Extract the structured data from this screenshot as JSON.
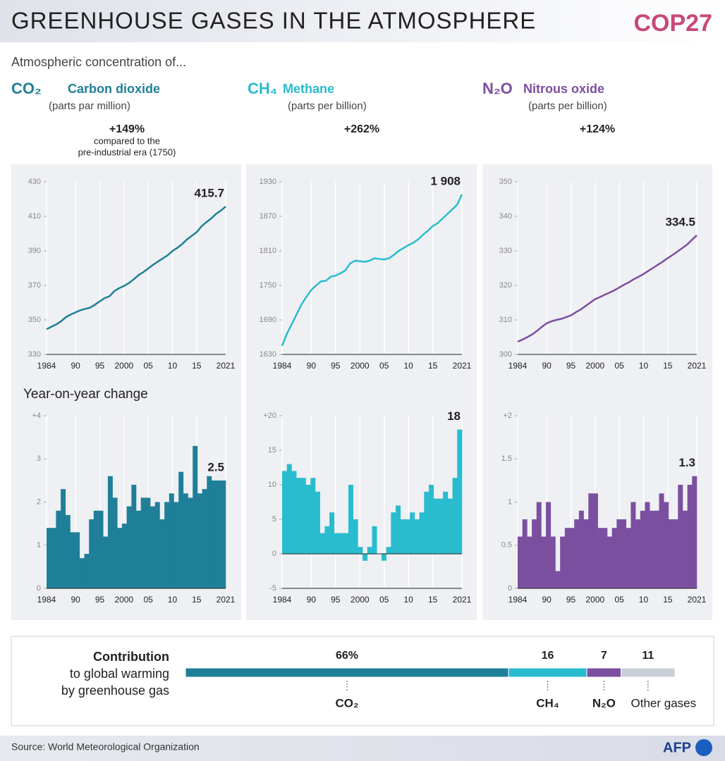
{
  "title": "GREENHOUSE GASES IN THE ATMOSPHERE",
  "logo": "COP27",
  "subtitle": "Atmospheric concentration of...",
  "yoy_label": "Year-on-year change",
  "gases": [
    {
      "formula": "CO₂",
      "name": "Carbon dioxide",
      "unit": "(parts par million)",
      "change": "+149%",
      "note": "compared to the",
      "note2": "pre-industrial era (1750)",
      "color": "#1f7f98"
    },
    {
      "formula": "CH₄",
      "name": "Methane",
      "unit": "(parts per billion)",
      "change": "+262%",
      "color": "#29bccf"
    },
    {
      "formula": "N₂O",
      "name": "Nitrous oxide",
      "unit": "(parts per billion)",
      "change": "+124%",
      "color": "#7b4fa0"
    }
  ],
  "chart_data": [
    {
      "type": "line",
      "color": "#1f7f98",
      "x": [
        1984,
        1985,
        1986,
        1987,
        1988,
        1989,
        1990,
        1991,
        1992,
        1993,
        1994,
        1995,
        1996,
        1997,
        1998,
        1999,
        2000,
        2001,
        2002,
        2003,
        2004,
        2005,
        2006,
        2007,
        2008,
        2009,
        2010,
        2011,
        2012,
        2013,
        2014,
        2015,
        2016,
        2017,
        2018,
        2019,
        2020,
        2021
      ],
      "values": [
        344.6,
        346.0,
        347.4,
        349.2,
        351.6,
        353.1,
        354.4,
        355.6,
        356.4,
        357.1,
        358.8,
        360.8,
        362.6,
        363.7,
        366.7,
        368.4,
        369.7,
        371.3,
        373.5,
        375.9,
        377.7,
        379.8,
        381.9,
        383.8,
        385.6,
        387.4,
        389.9,
        391.7,
        393.9,
        396.6,
        398.7,
        400.8,
        404.2,
        406.6,
        408.7,
        411.4,
        413.3,
        415.7
      ],
      "value_labels": [
        null,
        null,
        null,
        null,
        null,
        null,
        null,
        null,
        null,
        null,
        null,
        null,
        null,
        null,
        null,
        null,
        null,
        null,
        null,
        null,
        null,
        null,
        null,
        null,
        null,
        null,
        null,
        null,
        null,
        null,
        null,
        null,
        null,
        null,
        null,
        null,
        null,
        "415.7"
      ],
      "xlim": [
        1984,
        2021
      ],
      "ylim": [
        330,
        430
      ],
      "xticks": [
        1984,
        {
          "value": 1990,
          "label": "90"
        },
        {
          "value": 1995,
          "label": "95"
        },
        2000,
        {
          "value": 2005,
          "label": "05"
        },
        {
          "value": 2010,
          "label": "10"
        },
        {
          "value": 2015,
          "label": "15"
        },
        2021
      ],
      "yticks": [
        330,
        350,
        370,
        390,
        410,
        430
      ]
    },
    {
      "type": "line",
      "color": "#29bccf",
      "x": [
        1984,
        1985,
        1986,
        1987,
        1988,
        1989,
        1990,
        1991,
        1992,
        1993,
        1994,
        1995,
        1996,
        1997,
        1998,
        1999,
        2000,
        2001,
        2002,
        2003,
        2004,
        2005,
        2006,
        2007,
        2008,
        2009,
        2010,
        2011,
        2012,
        2013,
        2014,
        2015,
        2016,
        2017,
        2018,
        2019,
        2020,
        2021
      ],
      "values": [
        1645,
        1666,
        1683,
        1700,
        1717,
        1730,
        1742,
        1750,
        1757,
        1758,
        1765,
        1767,
        1771,
        1776,
        1788,
        1793,
        1792,
        1791,
        1793,
        1797,
        1796,
        1795,
        1797,
        1803,
        1810,
        1815,
        1820,
        1824,
        1830,
        1838,
        1845,
        1853,
        1858,
        1866,
        1874,
        1882,
        1890,
        1908
      ],
      "value_labels": [
        null,
        null,
        null,
        null,
        null,
        null,
        null,
        null,
        null,
        null,
        null,
        null,
        null,
        null,
        null,
        null,
        null,
        null,
        null,
        null,
        null,
        null,
        null,
        null,
        null,
        null,
        null,
        null,
        null,
        null,
        null,
        null,
        null,
        null,
        null,
        null,
        null,
        "1 908"
      ],
      "xlim": [
        1984,
        2021
      ],
      "ylim": [
        1630,
        1930
      ],
      "xticks": [
        1984,
        {
          "value": 1990,
          "label": "90"
        },
        {
          "value": 1995,
          "label": "95"
        },
        2000,
        {
          "value": 2005,
          "label": "05"
        },
        {
          "value": 2010,
          "label": "10"
        },
        {
          "value": 2015,
          "label": "15"
        },
        2021
      ],
      "yticks": [
        1630,
        1690,
        1750,
        1810,
        1870,
        1930
      ]
    },
    {
      "type": "line",
      "color": "#7b4fa0",
      "x": [
        1984,
        1985,
        1986,
        1987,
        1988,
        1989,
        1990,
        1991,
        1992,
        1993,
        1994,
        1995,
        1996,
        1997,
        1998,
        1999,
        2000,
        2001,
        2002,
        2003,
        2004,
        2005,
        2006,
        2007,
        2008,
        2009,
        2010,
        2011,
        2012,
        2013,
        2014,
        2015,
        2016,
        2017,
        2018,
        2019,
        2020,
        2021
      ],
      "values": [
        303.7,
        304.3,
        305.0,
        305.8,
        306.8,
        308.0,
        309.0,
        309.6,
        310.0,
        310.3,
        310.8,
        311.3,
        312.2,
        313.0,
        314.0,
        315.0,
        316.0,
        316.6,
        317.3,
        317.9,
        318.6,
        319.4,
        320.2,
        320.9,
        321.8,
        322.5,
        323.3,
        324.2,
        325.1,
        326.0,
        326.9,
        327.9,
        328.8,
        329.8,
        330.8,
        331.8,
        333.2,
        334.5
      ],
      "value_labels": [
        null,
        null,
        null,
        null,
        null,
        null,
        null,
        null,
        null,
        null,
        null,
        null,
        null,
        null,
        null,
        null,
        null,
        null,
        null,
        null,
        null,
        null,
        null,
        null,
        null,
        null,
        null,
        null,
        null,
        null,
        null,
        null,
        null,
        null,
        null,
        null,
        null,
        "334.5"
      ],
      "xlim": [
        1984,
        2021
      ],
      "ylim": [
        300,
        350
      ],
      "xticks": [
        1984,
        {
          "value": 1990,
          "label": "90"
        },
        {
          "value": 1995,
          "label": "95"
        },
        2000,
        {
          "value": 2005,
          "label": "05"
        },
        {
          "value": 2010,
          "label": "10"
        },
        {
          "value": 2015,
          "label": "15"
        },
        2021
      ],
      "yticks": [
        300,
        310,
        320,
        330,
        340,
        350
      ]
    },
    {
      "type": "bar",
      "color": "#1f7f98",
      "x": [
        1984,
        1985,
        1986,
        1987,
        1988,
        1989,
        1990,
        1991,
        1992,
        1993,
        1994,
        1995,
        1996,
        1997,
        1998,
        1999,
        2000,
        2001,
        2002,
        2003,
        2004,
        2005,
        2006,
        2007,
        2008,
        2009,
        2010,
        2011,
        2012,
        2013,
        2014,
        2015,
        2016,
        2017,
        2018,
        2019,
        2020,
        2021
      ],
      "values": [
        1.4,
        1.4,
        1.8,
        2.3,
        1.7,
        1.3,
        1.3,
        0.7,
        0.8,
        1.6,
        1.8,
        1.8,
        1.2,
        2.6,
        2.1,
        1.4,
        1.5,
        1.9,
        2.4,
        1.8,
        2.1,
        2.1,
        1.9,
        2.0,
        1.6,
        2.0,
        2.2,
        2.0,
        2.7,
        2.2,
        2.1,
        3.3,
        2.2,
        2.3,
        2.6,
        2.5,
        2.5,
        2.5
      ],
      "value_labels": [
        null,
        null,
        null,
        null,
        null,
        null,
        null,
        null,
        null,
        null,
        null,
        null,
        null,
        null,
        null,
        null,
        null,
        null,
        null,
        null,
        null,
        null,
        null,
        null,
        null,
        null,
        null,
        null,
        null,
        null,
        null,
        null,
        null,
        null,
        null,
        null,
        null,
        "2.5"
      ],
      "xlim": [
        1984,
        2021
      ],
      "ylim": [
        0,
        4
      ],
      "xticks": [
        1984,
        {
          "value": 1990,
          "label": "90"
        },
        {
          "value": 1995,
          "label": "95"
        },
        2000,
        {
          "value": 2005,
          "label": "05"
        },
        {
          "value": 2010,
          "label": "10"
        },
        {
          "value": 2015,
          "label": "15"
        },
        2021
      ],
      "yticks": [
        0,
        1,
        2,
        3,
        {
          "value": 4,
          "label": "+4"
        }
      ]
    },
    {
      "type": "bar",
      "color": "#29bccf",
      "x": [
        1984,
        1985,
        1986,
        1987,
        1988,
        1989,
        1990,
        1991,
        1992,
        1993,
        1994,
        1995,
        1996,
        1997,
        1998,
        1999,
        2000,
        2001,
        2002,
        2003,
        2004,
        2005,
        2006,
        2007,
        2008,
        2009,
        2010,
        2011,
        2012,
        2013,
        2014,
        2015,
        2016,
        2017,
        2018,
        2019,
        2020,
        2021
      ],
      "values": [
        12,
        13,
        12,
        11,
        11,
        10,
        11,
        9,
        3,
        4,
        6,
        3,
        3,
        3,
        10,
        5,
        1,
        -1,
        1,
        4,
        0,
        -1,
        1,
        6,
        7,
        5,
        5,
        6,
        5,
        6,
        9,
        10,
        8,
        8,
        9,
        8,
        11,
        18
      ],
      "value_labels": [
        null,
        null,
        null,
        null,
        null,
        null,
        null,
        null,
        null,
        null,
        null,
        null,
        null,
        null,
        null,
        null,
        null,
        null,
        null,
        null,
        null,
        null,
        null,
        null,
        null,
        null,
        null,
        null,
        null,
        null,
        null,
        null,
        null,
        null,
        null,
        null,
        null,
        "18"
      ],
      "xlim": [
        1984,
        2021
      ],
      "ylim": [
        -5,
        20
      ],
      "xticks": [
        1984,
        {
          "value": 1990,
          "label": "90"
        },
        {
          "value": 1995,
          "label": "95"
        },
        2000,
        {
          "value": 2005,
          "label": "05"
        },
        {
          "value": 2010,
          "label": "10"
        },
        {
          "value": 2015,
          "label": "15"
        },
        2021
      ],
      "yticks": [
        -5,
        0,
        5,
        10,
        15,
        {
          "value": 20,
          "label": "+20"
        }
      ]
    },
    {
      "type": "bar",
      "color": "#7b4fa0",
      "x": [
        1984,
        1985,
        1986,
        1987,
        1988,
        1989,
        1990,
        1991,
        1992,
        1993,
        1994,
        1995,
        1996,
        1997,
        1998,
        1999,
        2000,
        2001,
        2002,
        2003,
        2004,
        2005,
        2006,
        2007,
        2008,
        2009,
        2010,
        2011,
        2012,
        2013,
        2014,
        2015,
        2016,
        2017,
        2018,
        2019,
        2020,
        2021
      ],
      "values": [
        0.6,
        0.8,
        0.6,
        0.8,
        1.0,
        0.6,
        1.0,
        0.6,
        0.2,
        0.6,
        0.7,
        0.7,
        0.8,
        0.9,
        0.8,
        1.1,
        1.1,
        0.7,
        0.7,
        0.6,
        0.7,
        0.8,
        0.8,
        0.7,
        1.0,
        0.8,
        0.9,
        1.0,
        0.9,
        0.9,
        1.1,
        1.0,
        0.8,
        0.8,
        1.2,
        0.9,
        1.2,
        1.3
      ],
      "value_labels": [
        null,
        null,
        null,
        null,
        null,
        null,
        null,
        null,
        null,
        null,
        null,
        null,
        null,
        null,
        null,
        null,
        null,
        null,
        null,
        null,
        null,
        null,
        null,
        null,
        null,
        null,
        null,
        null,
        null,
        null,
        null,
        null,
        null,
        null,
        null,
        null,
        null,
        "1.3"
      ],
      "xlim": [
        1984,
        2021
      ],
      "ylim": [
        0,
        2
      ],
      "xticks": [
        1984,
        {
          "value": 1990,
          "label": "90"
        },
        {
          "value": 1995,
          "label": "95"
        },
        2000,
        {
          "value": 2005,
          "label": "05"
        },
        {
          "value": 2010,
          "label": "10"
        },
        {
          "value": 2015,
          "label": "15"
        },
        2021
      ],
      "yticks": [
        0,
        {
          "value": 0.5,
          "label": "0.5"
        },
        1,
        1.5,
        {
          "value": 2,
          "label": "+2"
        }
      ]
    },
    {
      "type": "stacked",
      "title": "Contribution",
      "subtitle": "to global warming",
      "subtitle2": "by  greenhouse gas",
      "categories": [
        "CO₂",
        "CH₄",
        "N₂O",
        "Other gases"
      ],
      "values": [
        66,
        16,
        7,
        11
      ],
      "value_labels": [
        "66%",
        "16",
        "7",
        "11"
      ],
      "colors": [
        "#1f7f98",
        "#29bccf",
        "#7b4fa0",
        "#c9ced8"
      ],
      "xlim": [
        0,
        100
      ]
    }
  ],
  "source": "Source: World Meteorological Organization",
  "credit": "AFP"
}
